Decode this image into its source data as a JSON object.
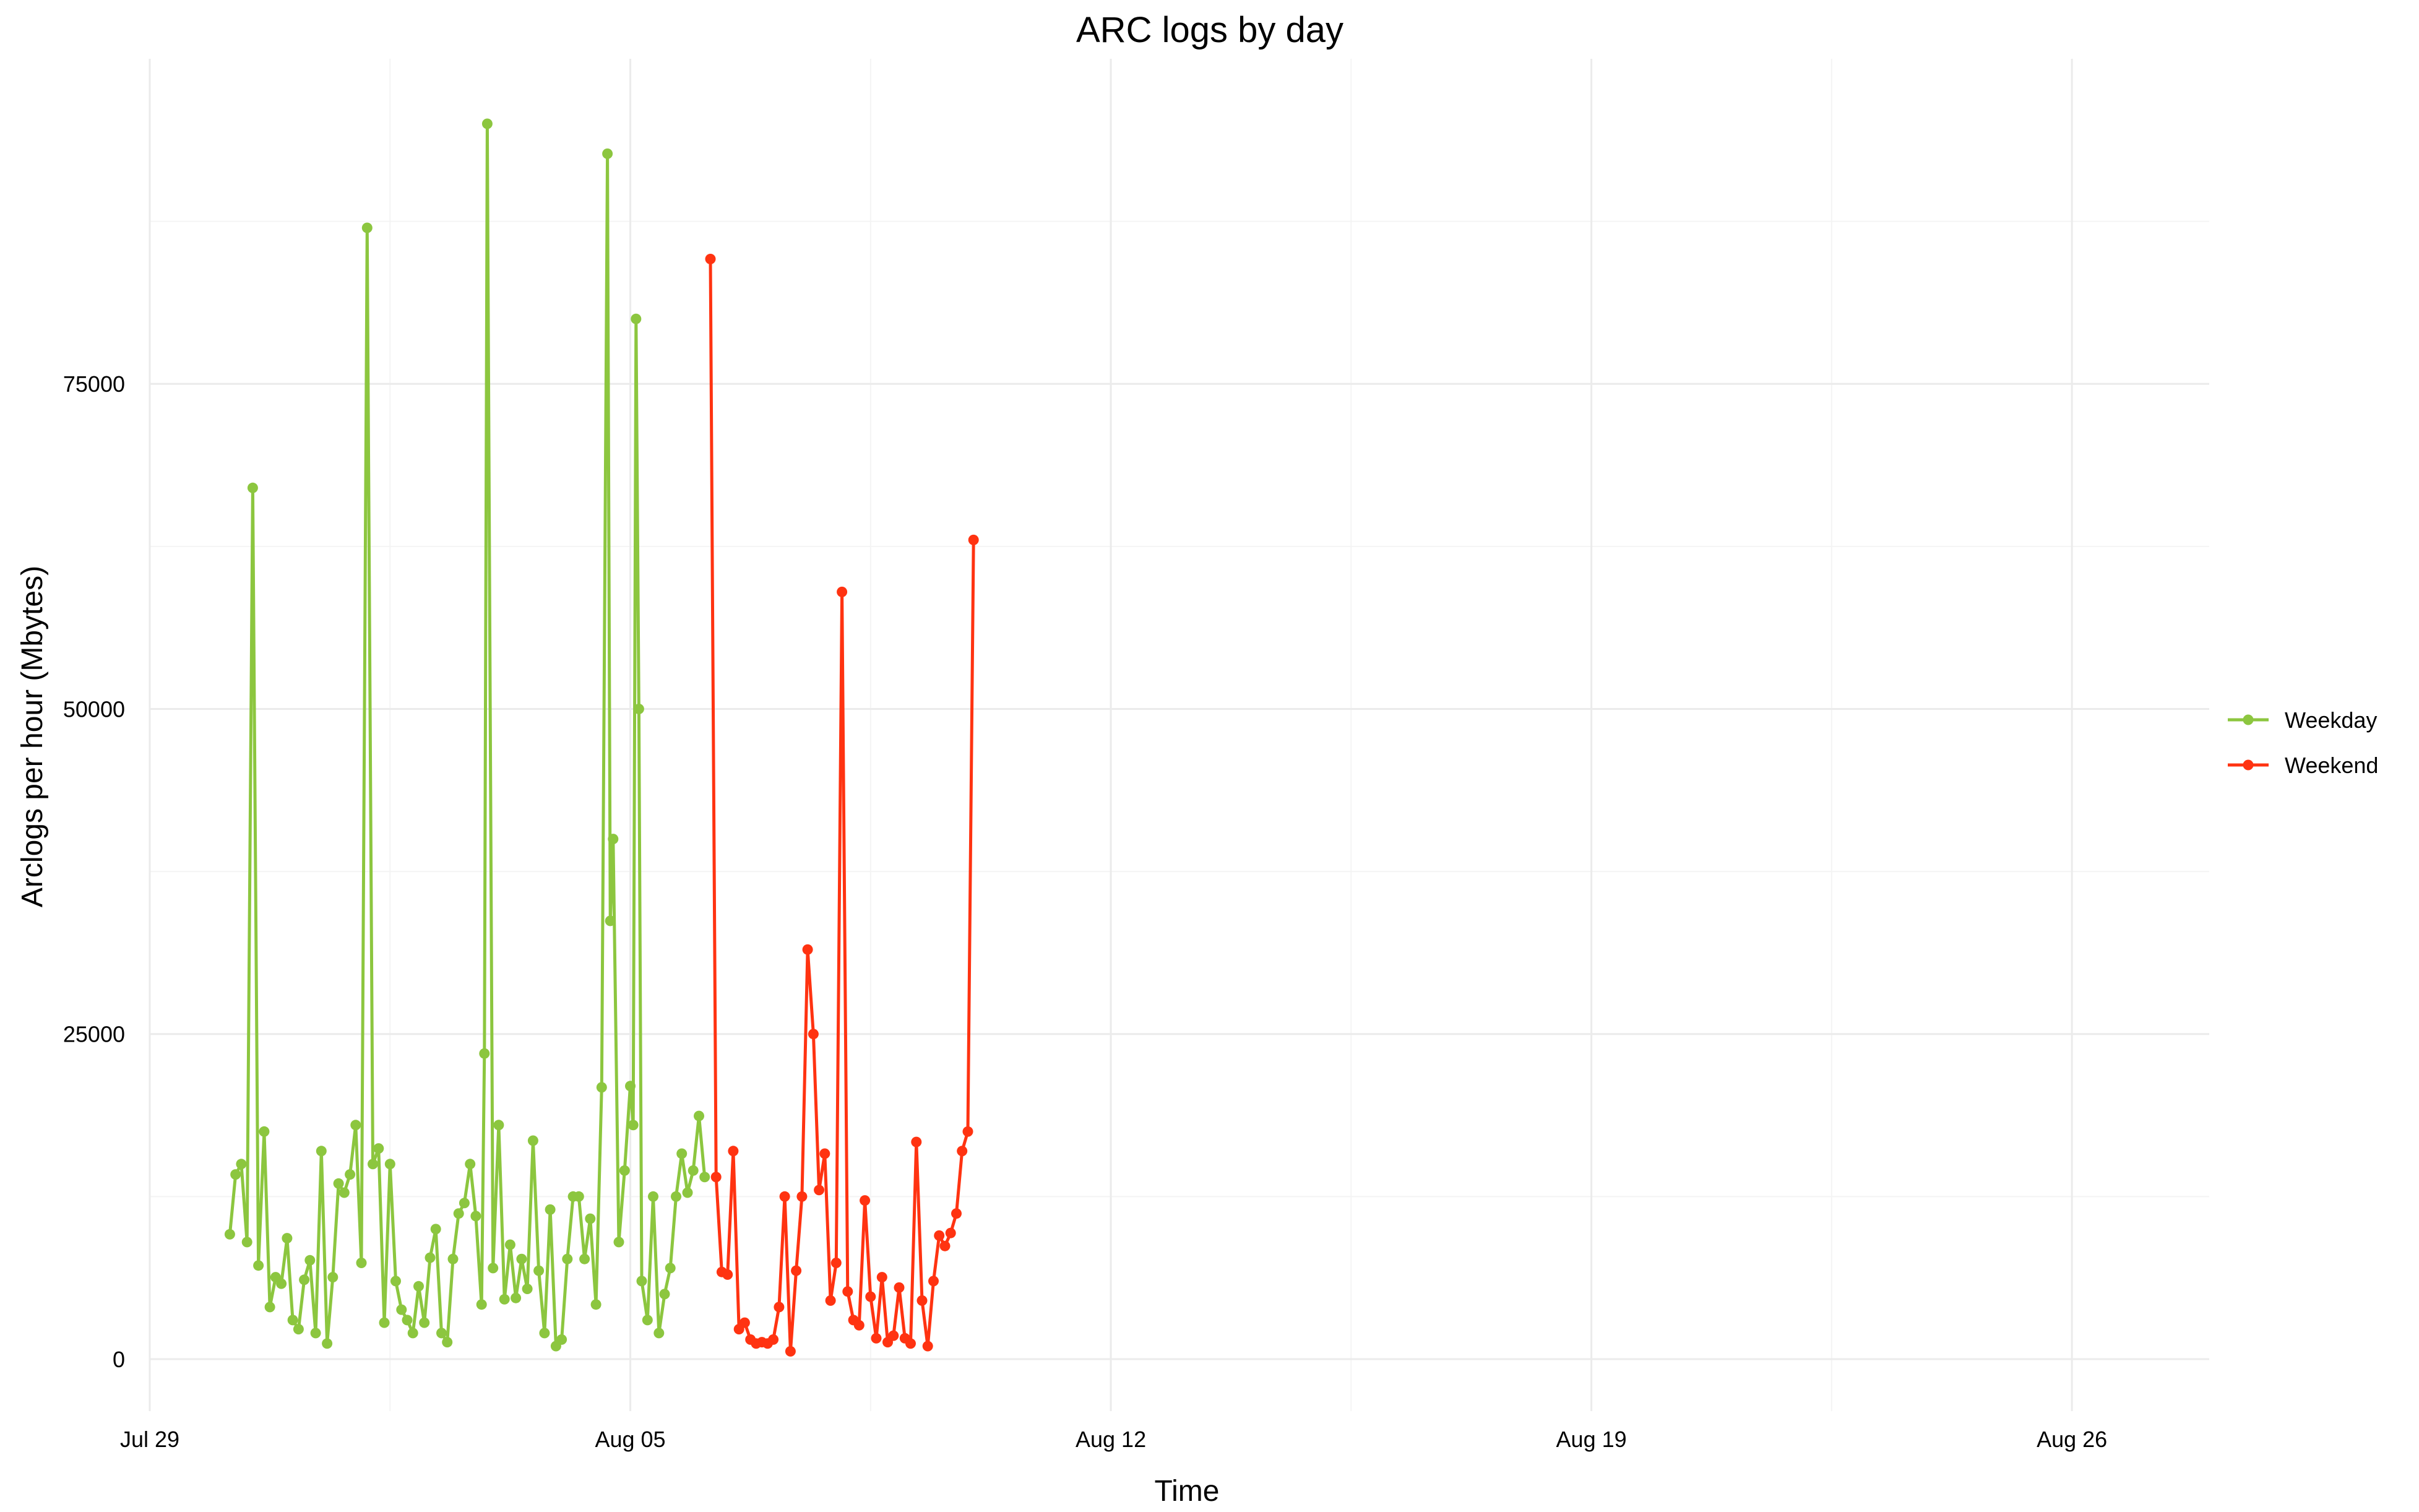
{
  "chart_data": {
    "type": "line",
    "title": "ARC logs by day",
    "xlabel": "Time",
    "ylabel": "Arclogs per hour (Mbytes)",
    "x_ticks": [
      "Jul 29",
      "Aug 05",
      "Aug 12",
      "Aug 19",
      "Aug 26"
    ],
    "x_tick_dates": [
      "2018-07-29",
      "2018-08-05",
      "2018-08-12",
      "2018-08-19",
      "2018-08-26"
    ],
    "xlim": [
      "2018-07-29T00:00",
      "2018-08-28T00:00"
    ],
    "y_ticks": [
      0,
      25000,
      50000,
      75000
    ],
    "y_tick_labels": [
      "0",
      "25000",
      "50000",
      "75000"
    ],
    "ylim": [
      -4000,
      100000
    ],
    "grid": true,
    "legend_position": "right",
    "series": [
      {
        "name": "Weekday",
        "color": "#8cc63f",
        "points": [
          [
            "2018-07-30T04:00",
            9600
          ],
          [
            "2018-07-30T06:00",
            14200
          ],
          [
            "2018-07-30T08:00",
            15000
          ],
          [
            "2018-07-30T10:00",
            9000
          ],
          [
            "2018-07-30T12:00",
            67000
          ],
          [
            "2018-07-30T14:00",
            7200
          ],
          [
            "2018-07-30T16:00",
            17500
          ],
          [
            "2018-07-30T18:00",
            4000
          ],
          [
            "2018-07-30T20:00",
            6300
          ],
          [
            "2018-07-30T22:00",
            5800
          ],
          [
            "2018-07-31T00:00",
            9300
          ],
          [
            "2018-07-31T02:00",
            3000
          ],
          [
            "2018-07-31T04:00",
            2300
          ],
          [
            "2018-07-31T06:00",
            6100
          ],
          [
            "2018-07-31T08:00",
            7600
          ],
          [
            "2018-07-31T10:00",
            2000
          ],
          [
            "2018-07-31T12:00",
            16000
          ],
          [
            "2018-07-31T14:00",
            1200
          ],
          [
            "2018-07-31T16:00",
            6300
          ],
          [
            "2018-07-31T18:00",
            13500
          ],
          [
            "2018-07-31T20:00",
            12800
          ],
          [
            "2018-07-31T22:00",
            14200
          ],
          [
            "2018-08-01T00:00",
            18000
          ],
          [
            "2018-08-01T02:00",
            7400
          ],
          [
            "2018-08-01T04:00",
            87000
          ],
          [
            "2018-08-01T06:00",
            15000
          ],
          [
            "2018-08-01T08:00",
            16200
          ],
          [
            "2018-08-01T10:00",
            2800
          ],
          [
            "2018-08-01T12:00",
            15000
          ],
          [
            "2018-08-01T14:00",
            6000
          ],
          [
            "2018-08-01T16:00",
            3800
          ],
          [
            "2018-08-01T18:00",
            3000
          ],
          [
            "2018-08-01T20:00",
            2000
          ],
          [
            "2018-08-01T22:00",
            5600
          ],
          [
            "2018-08-02T00:00",
            2800
          ],
          [
            "2018-08-02T02:00",
            7800
          ],
          [
            "2018-08-02T04:00",
            10000
          ],
          [
            "2018-08-02T06:00",
            2000
          ],
          [
            "2018-08-02T08:00",
            1300
          ],
          [
            "2018-08-02T10:00",
            7700
          ],
          [
            "2018-08-02T12:00",
            11200
          ],
          [
            "2018-08-02T14:00",
            12000
          ],
          [
            "2018-08-02T16:00",
            15000
          ],
          [
            "2018-08-02T18:00",
            11000
          ],
          [
            "2018-08-02T20:00",
            4200
          ],
          [
            "2018-08-02T21:00",
            23500
          ],
          [
            "2018-08-02T22:00",
            95000
          ],
          [
            "2018-08-03T00:00",
            7000
          ],
          [
            "2018-08-03T02:00",
            18000
          ],
          [
            "2018-08-03T04:00",
            4600
          ],
          [
            "2018-08-03T06:00",
            8800
          ],
          [
            "2018-08-03T08:00",
            4700
          ],
          [
            "2018-08-03T10:00",
            7700
          ],
          [
            "2018-08-03T12:00",
            5400
          ],
          [
            "2018-08-03T14:00",
            16800
          ],
          [
            "2018-08-03T16:00",
            6800
          ],
          [
            "2018-08-03T18:00",
            2000
          ],
          [
            "2018-08-03T20:00",
            11500
          ],
          [
            "2018-08-03T22:00",
            1000
          ],
          [
            "2018-08-04T00:00",
            1500
          ],
          [
            "2018-08-04T02:00",
            7700
          ],
          [
            "2018-08-04T04:00",
            12500
          ],
          [
            "2018-08-04T06:00",
            12500
          ],
          [
            "2018-08-04T08:00",
            7700
          ],
          [
            "2018-08-04T10:00",
            10800
          ],
          [
            "2018-08-04T12:00",
            4200
          ],
          [
            "2018-08-04T14:00",
            20900
          ],
          [
            "2018-08-04T16:00",
            92700
          ],
          [
            "2018-08-04T17:00",
            33700
          ],
          [
            "2018-08-04T18:00",
            40000
          ],
          [
            "2018-08-04T20:00",
            9000
          ],
          [
            "2018-08-04T22:00",
            14500
          ],
          [
            "2018-08-05T00:00",
            21000
          ],
          [
            "2018-08-05T01:00",
            18000
          ],
          [
            "2018-08-05T02:00",
            80000
          ],
          [
            "2018-08-05T03:00",
            50000
          ],
          [
            "2018-08-05T04:00",
            6000
          ],
          [
            "2018-08-05T06:00",
            3000
          ],
          [
            "2018-08-05T08:00",
            12500
          ],
          [
            "2018-08-05T10:00",
            2000
          ],
          [
            "2018-08-05T12:00",
            5000
          ],
          [
            "2018-08-05T14:00",
            7000
          ],
          [
            "2018-08-05T16:00",
            12500
          ],
          [
            "2018-08-05T18:00",
            15800
          ],
          [
            "2018-08-05T20:00",
            12800
          ],
          [
            "2018-08-05T22:00",
            14500
          ],
          [
            "2018-08-06T00:00",
            18700
          ],
          [
            "2018-08-06T02:00",
            14000
          ]
        ]
      },
      {
        "name": "Weekend",
        "color": "#ff3311",
        "points": [
          [
            "2018-08-06T04:00",
            84600
          ],
          [
            "2018-08-06T06:00",
            14000
          ],
          [
            "2018-08-06T08:00",
            6700
          ],
          [
            "2018-08-06T10:00",
            6500
          ],
          [
            "2018-08-06T12:00",
            16000
          ],
          [
            "2018-08-06T14:00",
            2300
          ],
          [
            "2018-08-06T16:00",
            2800
          ],
          [
            "2018-08-06T18:00",
            1500
          ],
          [
            "2018-08-06T20:00",
            1200
          ],
          [
            "2018-08-06T22:00",
            1300
          ],
          [
            "2018-08-07T00:00",
            1200
          ],
          [
            "2018-08-07T02:00",
            1500
          ],
          [
            "2018-08-07T04:00",
            4000
          ],
          [
            "2018-08-07T06:00",
            12500
          ],
          [
            "2018-08-07T08:00",
            600
          ],
          [
            "2018-08-07T10:00",
            6800
          ],
          [
            "2018-08-07T12:00",
            12500
          ],
          [
            "2018-08-07T14:00",
            31500
          ],
          [
            "2018-08-07T16:00",
            25000
          ],
          [
            "2018-08-07T18:00",
            13000
          ],
          [
            "2018-08-07T20:00",
            15800
          ],
          [
            "2018-08-07T22:00",
            4500
          ],
          [
            "2018-08-08T00:00",
            7400
          ],
          [
            "2018-08-08T02:00",
            59000
          ],
          [
            "2018-08-08T04:00",
            5200
          ],
          [
            "2018-08-08T06:00",
            3000
          ],
          [
            "2018-08-08T08:00",
            2600
          ],
          [
            "2018-08-08T10:00",
            12200
          ],
          [
            "2018-08-08T12:00",
            4800
          ],
          [
            "2018-08-08T14:00",
            1600
          ],
          [
            "2018-08-08T16:00",
            6300
          ],
          [
            "2018-08-08T18:00",
            1300
          ],
          [
            "2018-08-08T20:00",
            1800
          ],
          [
            "2018-08-08T22:00",
            5500
          ],
          [
            "2018-08-09T00:00",
            1600
          ],
          [
            "2018-08-09T02:00",
            1200
          ],
          [
            "2018-08-09T04:00",
            16700
          ],
          [
            "2018-08-09T06:00",
            4500
          ],
          [
            "2018-08-09T08:00",
            1000
          ],
          [
            "2018-08-09T10:00",
            6000
          ],
          [
            "2018-08-09T12:00",
            9500
          ],
          [
            "2018-08-09T14:00",
            8700
          ],
          [
            "2018-08-09T16:00",
            9700
          ],
          [
            "2018-08-09T18:00",
            11200
          ],
          [
            "2018-08-09T20:00",
            16000
          ],
          [
            "2018-08-09T22:00",
            17500
          ],
          [
            "2018-08-10T00:00",
            63000
          ]
        ]
      }
    ]
  }
}
